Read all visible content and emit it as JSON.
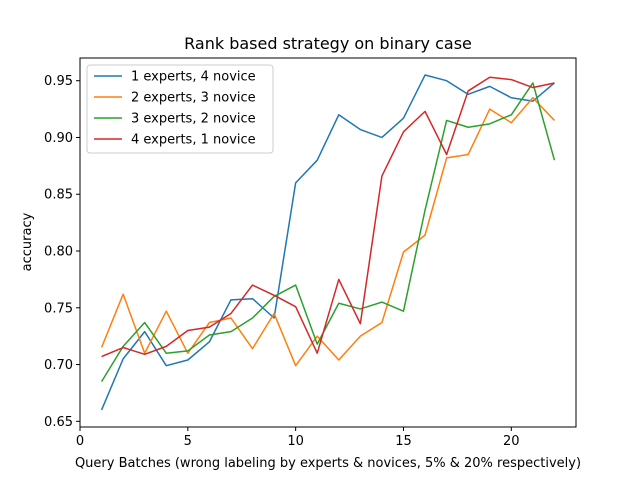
{
  "chart_data": {
    "type": "line",
    "title": "Rank based strategy on binary case",
    "xlabel": "Query Batches (wrong labeling by experts & novices, 5% & 20% respectively)",
    "ylabel": "accuracy",
    "xlim": [
      0,
      23
    ],
    "ylim": [
      0.645,
      0.97
    ],
    "xticks": [
      0,
      5,
      10,
      15,
      20
    ],
    "yticks": [
      0.65,
      0.7,
      0.75,
      0.8,
      0.85,
      0.9,
      0.95
    ],
    "ytick_labels": [
      "0.65",
      "0.70",
      "0.75",
      "0.80",
      "0.85",
      "0.90",
      "0.95"
    ],
    "grid": false,
    "legend_position": "top-left",
    "x": [
      1,
      2,
      3,
      4,
      5,
      6,
      7,
      8,
      9,
      10,
      11,
      12,
      13,
      14,
      15,
      16,
      17,
      18,
      19,
      20,
      21,
      22
    ],
    "series": [
      {
        "name": "1 experts, 4 novice",
        "color": "#1f77b4",
        "values": [
          0.66,
          0.705,
          0.729,
          0.699,
          0.704,
          0.72,
          0.757,
          0.758,
          0.741,
          0.86,
          0.88,
          0.92,
          0.907,
          0.9,
          0.917,
          0.955,
          0.95,
          0.938,
          0.945,
          0.935,
          0.932,
          0.948
        ]
      },
      {
        "name": "2 experts, 3 novice",
        "color": "#ff7f0e",
        "values": [
          0.715,
          0.762,
          0.71,
          0.747,
          0.71,
          0.737,
          0.741,
          0.714,
          0.745,
          0.699,
          0.725,
          0.704,
          0.725,
          0.737,
          0.799,
          0.814,
          0.882,
          0.885,
          0.925,
          0.913,
          0.935,
          0.915
        ]
      },
      {
        "name": "3 experts, 2 novice",
        "color": "#2ca02c",
        "values": [
          0.685,
          0.716,
          0.737,
          0.71,
          0.712,
          0.726,
          0.729,
          0.741,
          0.76,
          0.77,
          0.718,
          0.754,
          0.749,
          0.755,
          0.747,
          0.836,
          0.915,
          0.909,
          0.912,
          0.92,
          0.948,
          0.88
        ]
      },
      {
        "name": "4 experts, 1 novice",
        "color": "#d62728",
        "values": [
          0.707,
          0.715,
          0.709,
          0.716,
          0.73,
          0.733,
          0.745,
          0.77,
          0.761,
          0.751,
          0.71,
          0.775,
          0.736,
          0.866,
          0.905,
          0.923,
          0.885,
          0.941,
          0.953,
          0.951,
          0.944,
          0.948
        ]
      }
    ]
  }
}
